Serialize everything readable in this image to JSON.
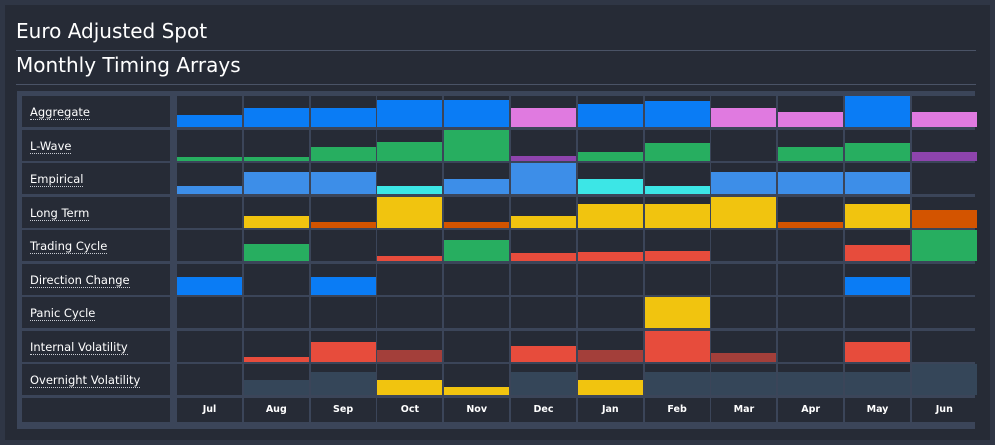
{
  "header": {
    "title": "Euro Adjusted Spot",
    "subtitle": "Monthly Timing Arrays"
  },
  "colors": {
    "blue": "#0a7cf5",
    "pink": "#e07ae0",
    "green": "#27ae60",
    "purple": "#8e44ad",
    "steel_blue": "#3d8ee8",
    "cyan": "#3ce6e6",
    "yellow": "#f1c40f",
    "orange": "#d35400",
    "red": "#e74c3c",
    "dark_red": "#a33f3a",
    "slate": "#354659"
  },
  "months": [
    "Jul",
    "Aug",
    "Sep",
    "Oct",
    "Nov",
    "Dec",
    "Jan",
    "Feb",
    "Mar",
    "Apr",
    "May",
    "Jun"
  ],
  "rows": [
    {
      "label": "Aggregate",
      "cells": [
        {
          "level": 0.38,
          "color": "blue"
        },
        {
          "level": 0.62,
          "color": "blue"
        },
        {
          "level": 0.62,
          "color": "blue"
        },
        {
          "level": 0.88,
          "color": "blue"
        },
        {
          "level": 0.88,
          "color": "blue"
        },
        {
          "level": 0.62,
          "color": "pink"
        },
        {
          "level": 0.75,
          "color": "blue"
        },
        {
          "level": 0.85,
          "color": "blue"
        },
        {
          "level": 0.62,
          "color": "pink"
        },
        {
          "level": 0.5,
          "color": "pink"
        },
        {
          "level": 1.0,
          "color": "blue"
        },
        {
          "level": 0.5,
          "color": "pink"
        }
      ]
    },
    {
      "label": "L-Wave",
      "cells": [
        {
          "level": 0.12,
          "color": "green"
        },
        {
          "level": 0.12,
          "color": "green"
        },
        {
          "level": 0.45,
          "color": "green"
        },
        {
          "level": 0.6,
          "color": "green"
        },
        {
          "level": 1.0,
          "color": "green"
        },
        {
          "level": 0.15,
          "color": "purple"
        },
        {
          "level": 0.27,
          "color": "green"
        },
        {
          "level": 0.58,
          "color": "green"
        },
        {
          "level": 0,
          "color": "green"
        },
        {
          "level": 0.42,
          "color": "green"
        },
        {
          "level": 0.58,
          "color": "green"
        },
        {
          "level": 0.27,
          "color": "purple"
        }
      ]
    },
    {
      "label": "Empirical",
      "cells": [
        {
          "level": 0.26,
          "color": "steel_blue"
        },
        {
          "level": 0.72,
          "color": "steel_blue"
        },
        {
          "level": 0.72,
          "color": "steel_blue"
        },
        {
          "level": 0.26,
          "color": "cyan"
        },
        {
          "level": 0.48,
          "color": "steel_blue"
        },
        {
          "level": 1.0,
          "color": "steel_blue"
        },
        {
          "level": 0.48,
          "color": "cyan"
        },
        {
          "level": 0.26,
          "color": "cyan"
        },
        {
          "level": 0.72,
          "color": "steel_blue"
        },
        {
          "level": 0.72,
          "color": "steel_blue"
        },
        {
          "level": 0.72,
          "color": "steel_blue"
        },
        {
          "level": 0,
          "color": "steel_blue"
        }
      ]
    },
    {
      "label": "Long Term",
      "cells": [
        {
          "level": 0,
          "color": "yellow"
        },
        {
          "level": 0.37,
          "color": "yellow"
        },
        {
          "level": 0.18,
          "color": "orange"
        },
        {
          "level": 1.0,
          "color": "yellow"
        },
        {
          "level": 0.18,
          "color": "orange"
        },
        {
          "level": 0.37,
          "color": "yellow"
        },
        {
          "level": 0.77,
          "color": "yellow"
        },
        {
          "level": 0.77,
          "color": "yellow"
        },
        {
          "level": 1.0,
          "color": "yellow"
        },
        {
          "level": 0.18,
          "color": "orange"
        },
        {
          "level": 0.77,
          "color": "yellow"
        },
        {
          "level": 0.58,
          "color": "orange"
        }
      ]
    },
    {
      "label": "Trading Cycle",
      "cells": [
        {
          "level": 0,
          "color": "green"
        },
        {
          "level": 0.55,
          "color": "green"
        },
        {
          "level": 0,
          "color": "green"
        },
        {
          "level": 0.16,
          "color": "red"
        },
        {
          "level": 0.68,
          "color": "green"
        },
        {
          "level": 0.26,
          "color": "red"
        },
        {
          "level": 0.29,
          "color": "red"
        },
        {
          "level": 0.32,
          "color": "red"
        },
        {
          "level": 0,
          "color": "red"
        },
        {
          "level": 0,
          "color": "red"
        },
        {
          "level": 0.52,
          "color": "red"
        },
        {
          "level": 1.0,
          "color": "green"
        }
      ]
    },
    {
      "label": "Direction Change",
      "cells": [
        {
          "level": 0.55,
          "color": "blue"
        },
        {
          "level": 0,
          "color": "blue"
        },
        {
          "level": 0.55,
          "color": "blue"
        },
        {
          "level": 0,
          "color": "blue"
        },
        {
          "level": 0,
          "color": "blue"
        },
        {
          "level": 0,
          "color": "blue"
        },
        {
          "level": 0,
          "color": "blue"
        },
        {
          "level": 0,
          "color": "blue"
        },
        {
          "level": 0,
          "color": "blue"
        },
        {
          "level": 0,
          "color": "blue"
        },
        {
          "level": 0.55,
          "color": "blue"
        },
        {
          "level": 0,
          "color": "blue"
        }
      ]
    },
    {
      "label": "Panic Cycle",
      "cells": [
        {
          "level": 0,
          "color": "yellow"
        },
        {
          "level": 0,
          "color": "yellow"
        },
        {
          "level": 0,
          "color": "yellow"
        },
        {
          "level": 0,
          "color": "yellow"
        },
        {
          "level": 0,
          "color": "yellow"
        },
        {
          "level": 0,
          "color": "yellow"
        },
        {
          "level": 0,
          "color": "yellow"
        },
        {
          "level": 1.0,
          "color": "yellow"
        },
        {
          "level": 0,
          "color": "yellow"
        },
        {
          "level": 0,
          "color": "yellow"
        },
        {
          "level": 0,
          "color": "yellow"
        },
        {
          "level": 0,
          "color": "yellow"
        }
      ]
    },
    {
      "label": "Internal Volatility",
      "cells": [
        {
          "level": 0,
          "color": "red"
        },
        {
          "level": 0.13,
          "color": "red"
        },
        {
          "level": 0.62,
          "color": "red"
        },
        {
          "level": 0.38,
          "color": "dark_red"
        },
        {
          "level": 0,
          "color": "red"
        },
        {
          "level": 0.5,
          "color": "red"
        },
        {
          "level": 0.38,
          "color": "dark_red"
        },
        {
          "level": 1.0,
          "color": "red"
        },
        {
          "level": 0.26,
          "color": "dark_red"
        },
        {
          "level": 0,
          "color": "red"
        },
        {
          "level": 0.62,
          "color": "red"
        },
        {
          "level": 0,
          "color": "red"
        }
      ]
    },
    {
      "label": "Overnight Volatility",
      "cells": [
        {
          "level": 0,
          "color": "slate"
        },
        {
          "level": 0.5,
          "color": "slate"
        },
        {
          "level": 0.75,
          "color": "slate"
        },
        {
          "level": 0.5,
          "color": "yellow"
        },
        {
          "level": 0.25,
          "color": "yellow"
        },
        {
          "level": 0.75,
          "color": "slate"
        },
        {
          "level": 0.5,
          "color": "yellow"
        },
        {
          "level": 0.75,
          "color": "slate"
        },
        {
          "level": 0.75,
          "color": "slate"
        },
        {
          "level": 0.75,
          "color": "slate"
        },
        {
          "level": 0.75,
          "color": "slate"
        },
        {
          "level": 1.0,
          "color": "slate"
        }
      ]
    }
  ]
}
